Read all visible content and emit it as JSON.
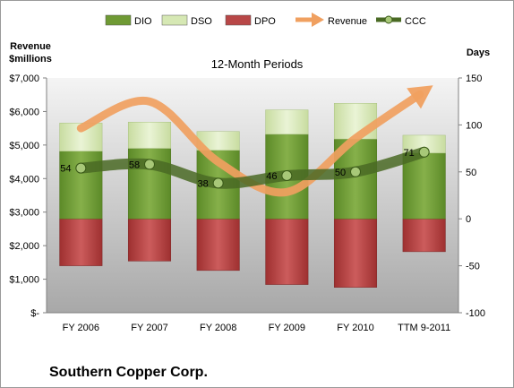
{
  "chart_data": {
    "type": "bar",
    "title": "12-Month Periods",
    "company": "Southern Copper Corp.",
    "left_axis_label": [
      "Revenue",
      "$millions"
    ],
    "right_axis_label": "Days",
    "categories": [
      "FY 2006",
      "FY 2007",
      "FY 2008",
      "FY 2009",
      "FY 2010",
      "TTM 9-2011"
    ],
    "left_axis": {
      "ticks": [
        0,
        1000,
        2000,
        3000,
        4000,
        5000,
        6000,
        7000
      ],
      "tick_labels": [
        "$-",
        "$1,000",
        "$2,000",
        "$3,000",
        "$4,000",
        "$5,000",
        "$6,000",
        "$7,000"
      ],
      "range": [
        0,
        7000
      ]
    },
    "right_axis": {
      "ticks": [
        -100,
        -50,
        0,
        50,
        100,
        150
      ],
      "tick_labels": [
        "-100",
        "-50",
        "0",
        "50",
        "100",
        "150"
      ],
      "range": [
        -100,
        150
      ]
    },
    "legend": {
      "placement": "top",
      "entries": [
        {
          "name": "DIO",
          "kind": "bar",
          "color": "#6f9a34"
        },
        {
          "name": "DSO",
          "kind": "bar",
          "color": "#d6e8b4"
        },
        {
          "name": "DPO",
          "kind": "bar",
          "color": "#b84747"
        },
        {
          "name": "Revenue",
          "kind": "arrow",
          "color": "#f0a060"
        },
        {
          "name": "CCC",
          "kind": "line",
          "color": "#4a6a24"
        }
      ]
    },
    "series": [
      {
        "name": "DPO",
        "axis": "right",
        "values": [
          -50,
          -45,
          -55,
          -70,
          -73,
          -35
        ]
      },
      {
        "name": "DIO",
        "axis": "right",
        "values": [
          72,
          75,
          73,
          90,
          85,
          70
        ]
      },
      {
        "name": "DSO",
        "axis": "right",
        "values": [
          30,
          28,
          20,
          26,
          38,
          19
        ]
      },
      {
        "name": "Revenue",
        "axis": "left",
        "values": [
          5500,
          6300,
          4500,
          3600,
          5200,
          6600
        ]
      },
      {
        "name": "CCC",
        "axis": "right",
        "values": [
          54,
          58,
          38,
          46,
          50,
          71
        ],
        "labels": [
          "54",
          "58",
          "38",
          "46",
          "50",
          "71"
        ]
      }
    ],
    "grid": false
  }
}
